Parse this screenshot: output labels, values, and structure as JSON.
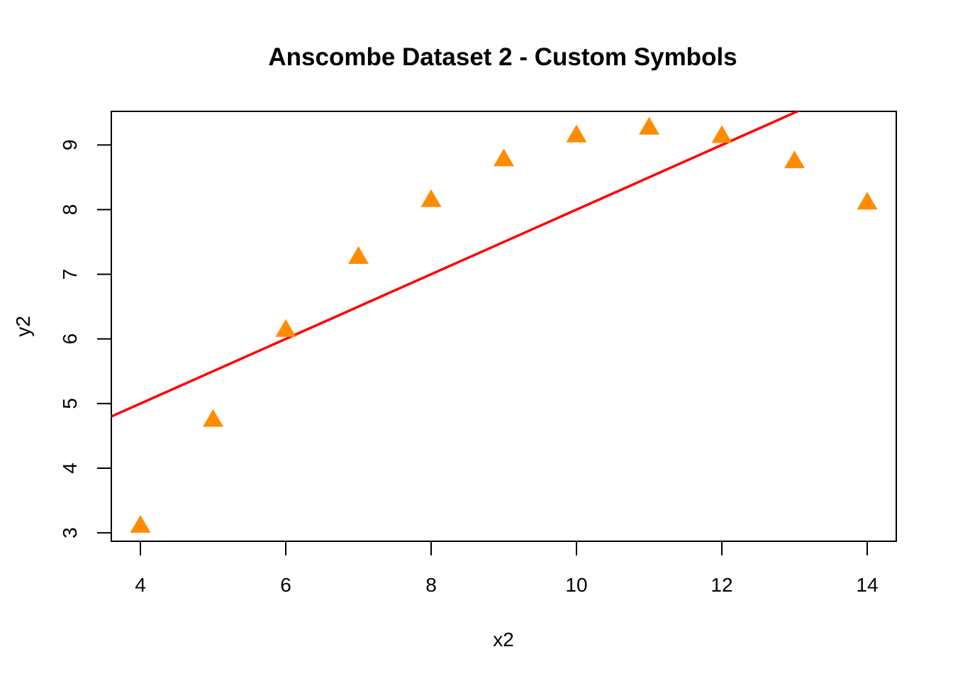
{
  "chart_data": {
    "type": "scatter",
    "title": "Anscombe Dataset 2 - Custom Symbols",
    "xlabel": "x2",
    "ylabel": "y2",
    "xlim": [
      3.6,
      14.4
    ],
    "ylim": [
      2.87,
      9.52
    ],
    "x_ticks": [
      4,
      6,
      8,
      10,
      12,
      14
    ],
    "y_ticks": [
      3,
      4,
      5,
      6,
      7,
      8,
      9
    ],
    "grid": false,
    "legend": "none",
    "series": [
      {
        "marker": "filled-triangle",
        "color": "#FF8C00",
        "points": [
          {
            "x": 4,
            "y": 3.1
          },
          {
            "x": 5,
            "y": 4.74
          },
          {
            "x": 6,
            "y": 6.13
          },
          {
            "x": 7,
            "y": 7.26
          },
          {
            "x": 8,
            "y": 8.14
          },
          {
            "x": 9,
            "y": 8.77
          },
          {
            "x": 10,
            "y": 9.14
          },
          {
            "x": 11,
            "y": 9.26
          },
          {
            "x": 12,
            "y": 9.13
          },
          {
            "x": 13,
            "y": 8.74
          },
          {
            "x": 14,
            "y": 8.1
          }
        ]
      }
    ],
    "fit_line": {
      "color": "#FF0000",
      "intercept": 3.0,
      "slope": 0.5
    }
  }
}
